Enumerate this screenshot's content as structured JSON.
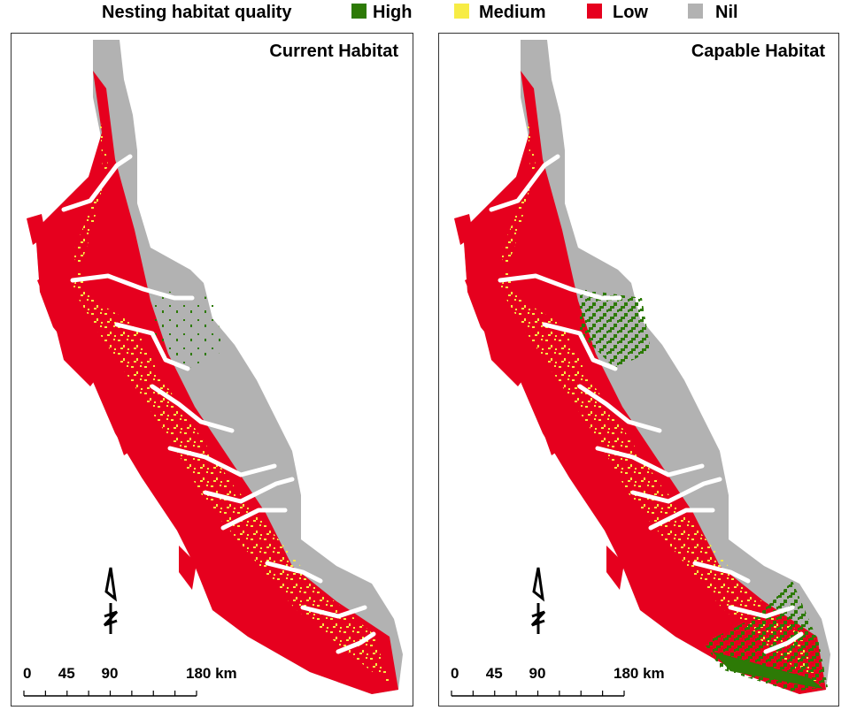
{
  "legend": {
    "title": "Nesting habitat quality",
    "items": [
      {
        "label": "High",
        "color": "#2d7a06"
      },
      {
        "label": "Medium",
        "color": "#f7ec45"
      },
      {
        "label": "Low",
        "color": "#e6001e"
      },
      {
        "label": "Nil",
        "color": "#b2b2b2"
      }
    ]
  },
  "panels": [
    {
      "title": "Current Habitat"
    },
    {
      "title": "Capable Habitat"
    }
  ],
  "scale_bar": {
    "labels": [
      "0",
      "45",
      "90",
      "180 km"
    ]
  }
}
